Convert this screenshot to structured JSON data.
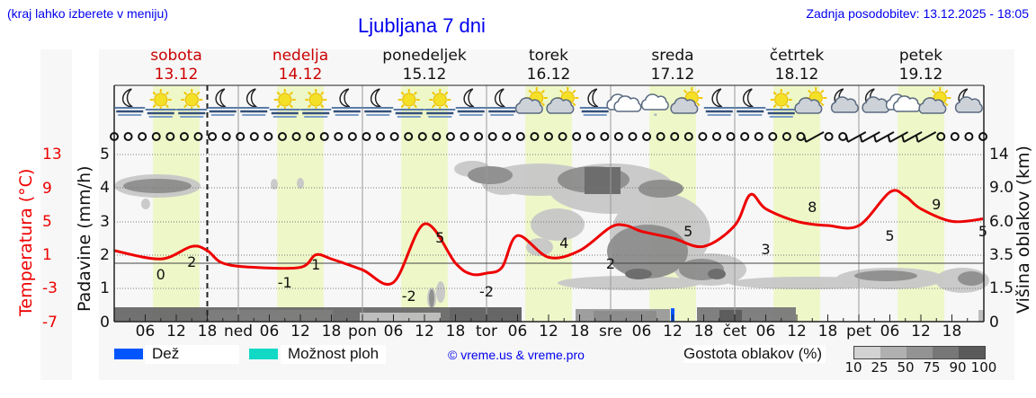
{
  "header": {
    "location_hint": "(kraj lahko izberete v meniju)",
    "title": "Ljubljana 7 dni",
    "last_update": "Zadnja posodobitev: 13.12.2025 - 18:05"
  },
  "days": [
    {
      "name": "sobota",
      "date": "13.12",
      "color": "#cc0000"
    },
    {
      "name": "nedelja",
      "date": "14.12",
      "color": "#cc0000"
    },
    {
      "name": "ponedeljek",
      "date": "15.12",
      "color": "#111111"
    },
    {
      "name": "torek",
      "date": "16.12",
      "color": "#111111"
    },
    {
      "name": "sreda",
      "date": "17.12",
      "color": "#111111"
    },
    {
      "name": "četrtek",
      "date": "18.12",
      "color": "#111111"
    },
    {
      "name": "petek",
      "date": "19.12",
      "color": "#111111"
    }
  ],
  "weather_icons": [
    "moon-fog",
    "sun-fog",
    "sun-fog",
    "moon-fog",
    "moon-fog",
    "sun-fog",
    "sun-fog",
    "moon-fog",
    "moon-fog",
    "sun-fog",
    "sun-fog",
    "moon-fog",
    "moon-fog",
    "sun-cloud",
    "sun-cloud",
    "moon-fog",
    "cloud",
    "cloud-drizzle",
    "sun-cloud",
    "moon-fog",
    "moon-fog",
    "sun-fog",
    "sun-cloud",
    "moon-cloud",
    "moon-cloud",
    "cloud-rain",
    "sun-cloud",
    "moon-cloud"
  ],
  "wind_symbols": [
    "calm",
    "calm",
    "calm",
    "calm",
    "calm",
    "calm",
    "calm",
    "calm",
    "calm",
    "calm",
    "calm",
    "calm",
    "calm",
    "calm",
    "calm",
    "calm",
    "calm",
    "calm",
    "calm",
    "calm",
    "calm",
    "calm",
    "calm",
    "calm",
    "calm",
    "calm",
    "calm",
    "calm",
    "calm",
    "calm",
    "calm",
    "calm",
    "calm",
    "calm",
    "calm",
    "calm",
    "calm",
    "calm",
    "calm",
    "calm",
    "calm",
    "calm",
    "calm",
    "calm",
    "calm",
    "calm",
    "calm",
    "calm",
    "calm",
    "calm",
    "barb",
    "calm",
    "calm",
    "barb",
    "barb",
    "barb",
    "barb",
    "barb",
    "barb",
    "calm",
    "calm",
    "calm",
    "calm"
  ],
  "axes": {
    "left_precip_label": "Padavine (mm/h)",
    "left_precip_ticks": [
      "5",
      "4",
      "3",
      "2",
      "1",
      "0"
    ],
    "left_temp_label": "Temperatura (°C)",
    "left_temp_ticks": [
      "13",
      "9",
      "5",
      "1",
      "-3",
      "-7"
    ],
    "right_label": "Višina oblakov (km)",
    "right_ticks": [
      "14",
      "9.0",
      "6.0",
      "3.5",
      "1.5",
      "0"
    ],
    "x_ticks": [
      "06",
      "12",
      "18",
      "ned",
      "06",
      "12",
      "18",
      "pon",
      "06",
      "12",
      "18",
      "tor",
      "06",
      "12",
      "18",
      "sre",
      "06",
      "12",
      "18",
      "čet",
      "06",
      "12",
      "18",
      "pet",
      "06",
      "12",
      "18"
    ]
  },
  "legend": {
    "rain": {
      "label": "Dež",
      "color": "#0055ff"
    },
    "showers": {
      "label": "Možnost ploh",
      "color": "#11d9c6"
    },
    "copyright": "© vreme.us & vreme.pro",
    "cloud_density_label": "Gostota oblakov (%)",
    "cloud_density_ticks": [
      "10",
      "25",
      "50",
      "75",
      "90",
      "100"
    ],
    "cloud_density_colors": [
      "#d2d2d2",
      "#b0b0b0",
      "#939393",
      "#777777",
      "#5a5a5a"
    ]
  },
  "colors": {
    "temperature_line": "#ee0000",
    "daylight_band": "#eef7c8",
    "plot_bg": "#f7f7f7",
    "link": "#0000ee"
  },
  "chart_data": {
    "type": "line",
    "title": "Ljubljana 7 dni",
    "x_range_hours": [
      0,
      168
    ],
    "xlabel": "",
    "now_marker_hour": 18,
    "series": [
      {
        "name": "Temperatura (°C)",
        "axis": "left_temp",
        "color": "#ee0000",
        "x_hours": [
          0,
          9,
          15,
          18,
          21,
          27,
          36,
          39,
          42,
          48,
          54,
          60,
          66,
          69,
          72,
          75,
          78,
          84,
          90,
          96,
          99,
          102,
          108,
          114,
          120,
          123,
          126,
          132,
          138,
          144,
          150,
          153,
          156,
          162,
          168
        ],
        "values": [
          1.5,
          0.5,
          2,
          1.5,
          0,
          -0.5,
          -0.5,
          1,
          0.5,
          -0.8,
          -2.3,
          4.7,
          0,
          -1.3,
          -1.2,
          -0.5,
          3.3,
          0.7,
          1.5,
          4.3,
          4.5,
          3.8,
          3,
          2,
          4.5,
          8.2,
          6.5,
          5,
          4.5,
          4.5,
          8.5,
          8,
          6.5,
          5,
          5.3
        ],
        "labels": [
          {
            "hour": 9,
            "text": "0"
          },
          {
            "hour": 15,
            "text": "2"
          },
          {
            "hour": 33,
            "text": "-1"
          },
          {
            "hour": 39,
            "text": "1"
          },
          {
            "hour": 57,
            "text": "-2"
          },
          {
            "hour": 63,
            "text": "5"
          },
          {
            "hour": 72,
            "text": "-2"
          },
          {
            "hour": 87,
            "text": "4"
          },
          {
            "hour": 96,
            "text": "2"
          },
          {
            "hour": 111,
            "text": "5"
          },
          {
            "hour": 126,
            "text": "3"
          },
          {
            "hour": 135,
            "text": "8"
          },
          {
            "hour": 150,
            "text": "5"
          },
          {
            "hour": 159,
            "text": "9"
          },
          {
            "hour": 168,
            "text": "5"
          }
        ]
      },
      {
        "name": "Dež (mm/h)",
        "axis": "left_precip",
        "color": "#0055ff",
        "x_hours": [
          108
        ],
        "values": [
          0.4
        ]
      }
    ],
    "precip_range": [
      0,
      5
    ],
    "temp_range": [
      -7,
      13
    ],
    "cloud_height_ticks_km": [
      0,
      1.5,
      3.5,
      6.0,
      9.0,
      14
    ],
    "daylight_bands_hours": [
      [
        7.5,
        16.5
      ],
      [
        31.5,
        40.5
      ],
      [
        55.5,
        64.5
      ],
      [
        79.5,
        88.5
      ],
      [
        103.5,
        112.5
      ],
      [
        127.5,
        136.5
      ],
      [
        151.5,
        160.5
      ]
    ],
    "grid": true,
    "legend_position": "bottom"
  }
}
